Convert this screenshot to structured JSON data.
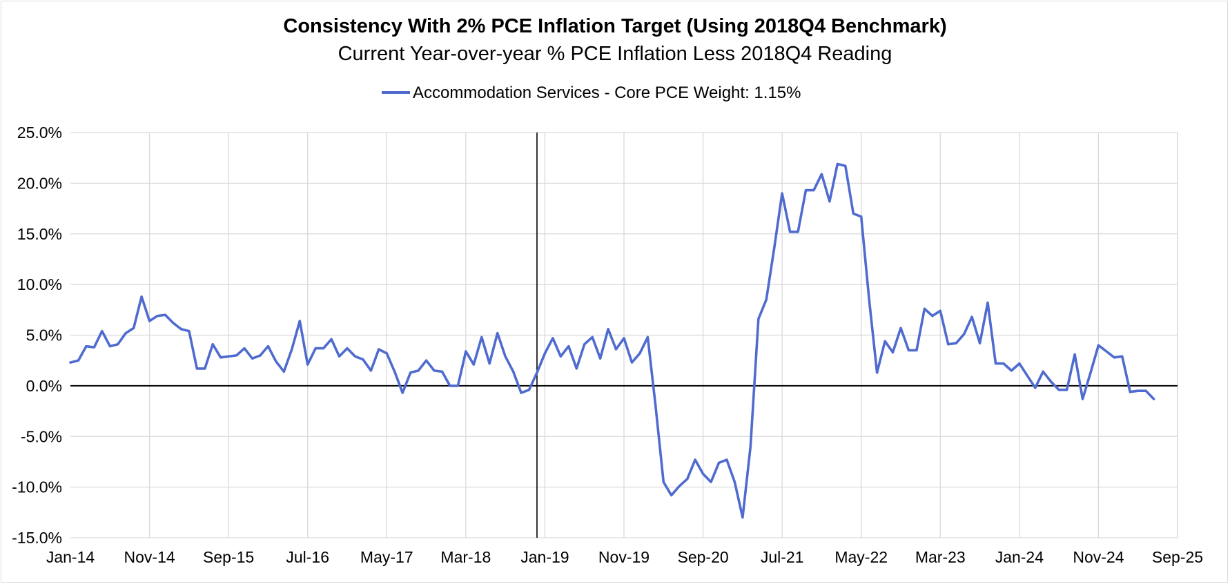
{
  "chart_data": {
    "type": "line",
    "title": "Consistency With 2% PCE Inflation Target (Using 2018Q4 Benchmark)",
    "subtitle": "Current Year-over-year % PCE Inflation Less 2018Q4 Reading",
    "legend_position": "top-center",
    "grid": true,
    "colors": {
      "series": "#4f6bcf",
      "axis": "#000000",
      "grid": "#d9d9d9"
    },
    "x_start": "Jan-14",
    "x_end": "Sep-25",
    "reference_line_x": "Dec-18",
    "xticks": [
      "Jan-14",
      "Nov-14",
      "Sep-15",
      "Jul-16",
      "May-17",
      "Mar-18",
      "Jan-19",
      "Nov-19",
      "Sep-20",
      "Jul-21",
      "May-22",
      "Mar-23",
      "Jan-24",
      "Nov-24",
      "Sep-25"
    ],
    "ylim": [
      -15,
      25
    ],
    "yticks": [
      -15,
      -10,
      -5,
      0,
      5,
      10,
      15,
      20,
      25
    ],
    "ytick_labels": [
      "-15.0%",
      "-10.0%",
      "-5.0%",
      "0.0%",
      "5.0%",
      "10.0%",
      "15.0%",
      "20.0%",
      "25.0%"
    ],
    "series": [
      {
        "name": "Accommodation Services - Core PCE Weight: 1.15%",
        "x_start": "Jan-14",
        "frequency": "monthly",
        "values": [
          2.3,
          2.5,
          3.9,
          3.8,
          5.4,
          3.9,
          4.1,
          5.2,
          5.7,
          8.8,
          6.4,
          6.9,
          7.0,
          6.2,
          5.6,
          5.4,
          1.7,
          1.7,
          4.1,
          2.8,
          2.9,
          3.0,
          3.7,
          2.7,
          3.0,
          3.9,
          2.4,
          1.4,
          3.6,
          6.4,
          2.1,
          3.7,
          3.7,
          4.6,
          2.9,
          3.7,
          2.9,
          2.6,
          1.5,
          3.6,
          3.2,
          1.4,
          -0.7,
          1.3,
          1.5,
          2.5,
          1.5,
          1.4,
          0.0,
          0.0,
          3.4,
          2.1,
          4.8,
          2.2,
          5.2,
          2.9,
          1.4,
          -0.7,
          -0.4,
          1.3,
          3.2,
          4.7,
          2.9,
          3.9,
          1.7,
          4.1,
          4.8,
          2.7,
          5.6,
          3.6,
          4.7,
          2.3,
          3.2,
          4.8,
          -2.0,
          -9.5,
          -10.8,
          -9.9,
          -9.2,
          -7.3,
          -8.7,
          -9.5,
          -7.6,
          -7.3,
          -9.5,
          -13.0,
          -6.0,
          6.6,
          8.5,
          13.6,
          19.0,
          15.2,
          15.2,
          19.3,
          19.3,
          20.9,
          18.2,
          21.9,
          21.7,
          17.0,
          16.7,
          8.5,
          1.3,
          4.4,
          3.3,
          5.7,
          3.5,
          3.5,
          7.6,
          6.9,
          7.4,
          4.1,
          4.2,
          5.1,
          6.8,
          4.2,
          8.2,
          2.2,
          2.2,
          1.5,
          2.2,
          1.0,
          -0.2,
          1.4,
          0.4,
          -0.4,
          -0.4,
          3.1,
          -1.3,
          1.3,
          4.0,
          3.4,
          2.8,
          2.9,
          -0.6,
          -0.5,
          -0.5,
          -1.3
        ]
      }
    ]
  }
}
